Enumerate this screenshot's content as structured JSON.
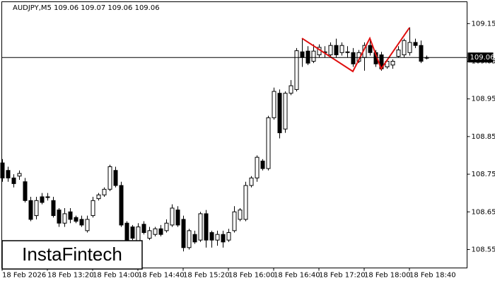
{
  "chart_data": {
    "type": "candlestick",
    "title": "AUDJPY,M5  109.06 109.07 109.06 109.06",
    "watermark": "InstaFintech",
    "categories": [
      "18 Feb 2026",
      null,
      null,
      null,
      null,
      null,
      null,
      null,
      "18 Feb 13:20",
      null,
      null,
      null,
      null,
      null,
      null,
      null,
      "18 Feb 14:00",
      null,
      null,
      null,
      null,
      null,
      null,
      null,
      "18 Feb 14:40",
      null,
      null,
      null,
      null,
      null,
      null,
      null,
      "18 Feb 15:20",
      null,
      null,
      null,
      null,
      null,
      null,
      null,
      "18 Feb 16:00",
      null,
      null,
      null,
      null,
      null,
      null,
      null,
      "18 Feb 16:40",
      null,
      null,
      null,
      null,
      null,
      null,
      null,
      "18 Feb 17:20",
      null,
      null,
      null,
      null,
      null,
      null,
      null,
      "18 Feb 18:00",
      null,
      null,
      null,
      null,
      null,
      null,
      null,
      "18 Feb 18:40",
      null,
      null,
      null
    ],
    "open": [
      108.78,
      108.76,
      108.74,
      108.745,
      108.73,
      108.68,
      108.64,
      108.69,
      108.69,
      108.68,
      108.655,
      108.62,
      108.65,
      108.635,
      108.63,
      108.6,
      108.64,
      108.685,
      108.695,
      108.71,
      108.76,
      108.72,
      108.62,
      108.61,
      108.57,
      108.617,
      108.58,
      108.59,
      108.605,
      108.6,
      108.615,
      108.655,
      108.63,
      108.555,
      108.59,
      108.575,
      108.645,
      108.595,
      108.575,
      108.59,
      108.575,
      108.6,
      108.63,
      108.63,
      108.72,
      108.74,
      108.785,
      108.765,
      108.9,
      108.965,
      108.87,
      108.965,
      108.975,
      109.075,
      109.077,
      109.05,
      109.067,
      109.073,
      109.067,
      109.092,
      109.073,
      109.073,
      109.073,
      109.05,
      109.06,
      109.092,
      109.073,
      109.067,
      109.035,
      109.04,
      109.063,
      109.067,
      109.073,
      109.1,
      109.092,
      109.06
    ],
    "high": [
      108.79,
      108.77,
      108.75,
      108.76,
      108.74,
      108.69,
      108.69,
      108.7,
      108.7,
      108.69,
      108.66,
      108.66,
      108.66,
      108.64,
      108.64,
      108.64,
      108.69,
      108.7,
      108.715,
      108.775,
      108.77,
      108.73,
      108.625,
      108.615,
      108.62,
      108.625,
      108.61,
      108.61,
      108.615,
      108.63,
      108.67,
      108.665,
      108.64,
      108.605,
      108.6,
      108.65,
      108.655,
      108.6,
      108.6,
      108.6,
      108.605,
      108.665,
      108.66,
      108.73,
      108.745,
      108.8,
      108.79,
      108.905,
      108.98,
      108.975,
      108.97,
      109.0,
      109.085,
      109.11,
      109.09,
      109.095,
      109.095,
      109.09,
      109.1,
      109.11,
      109.1,
      109.09,
      109.085,
      109.08,
      109.1,
      109.11,
      109.08,
      109.075,
      109.055,
      109.055,
      109.09,
      109.11,
      109.14,
      109.11,
      109.105,
      109.065
    ],
    "low": [
      108.73,
      108.73,
      108.715,
      108.735,
      108.675,
      108.625,
      108.63,
      108.67,
      108.68,
      108.635,
      108.61,
      108.61,
      108.62,
      108.62,
      108.61,
      108.595,
      108.635,
      108.68,
      108.69,
      108.705,
      108.715,
      108.61,
      108.565,
      108.575,
      108.565,
      108.59,
      108.575,
      108.585,
      108.585,
      108.595,
      108.61,
      108.61,
      108.545,
      108.55,
      108.565,
      108.57,
      108.555,
      108.555,
      108.56,
      108.555,
      108.57,
      108.595,
      108.625,
      108.625,
      108.715,
      108.73,
      108.76,
      108.76,
      108.895,
      108.845,
      108.86,
      108.96,
      108.97,
      109.035,
      109.04,
      109.045,
      109.06,
      109.06,
      109.06,
      109.06,
      109.065,
      109.06,
      109.035,
      109.045,
      109.025,
      109.065,
      109.035,
      109.025,
      109.03,
      109.03,
      109.06,
      109.06,
      109.065,
      109.085,
      109.045,
      109.055
    ],
    "close": [
      108.74,
      108.74,
      108.725,
      108.752,
      108.68,
      108.63,
      108.68,
      108.675,
      108.688,
      108.64,
      108.62,
      108.645,
      108.63,
      108.625,
      108.615,
      108.63,
      108.68,
      108.695,
      108.71,
      108.77,
      108.72,
      108.615,
      108.57,
      108.58,
      108.61,
      108.595,
      108.6,
      108.605,
      108.59,
      108.62,
      108.66,
      108.615,
      108.555,
      108.6,
      108.57,
      108.645,
      108.575,
      108.575,
      108.59,
      108.57,
      108.595,
      108.65,
      108.655,
      108.72,
      108.74,
      108.795,
      108.765,
      108.9,
      108.97,
      108.86,
      108.965,
      108.985,
      109.078,
      109.06,
      109.045,
      109.077,
      109.087,
      109.075,
      109.092,
      109.067,
      109.092,
      109.075,
      109.043,
      109.073,
      109.092,
      109.073,
      109.043,
      109.03,
      109.05,
      109.05,
      109.08,
      109.105,
      109.1,
      109.092,
      109.05,
      109.06
    ],
    "up_color": "#ffffff",
    "down_color": "#000000",
    "last_price": 109.06,
    "pattern": {
      "color": "#e01010",
      "x": [
        53,
        62,
        65,
        67,
        72
      ],
      "y": [
        109.111,
        109.023,
        109.111,
        109.03,
        109.139
      ]
    },
    "ylim": [
      108.501,
      109.208
    ],
    "yticks": [
      108.55,
      108.65,
      108.75,
      108.85,
      108.95,
      109.05,
      109.15
    ]
  }
}
